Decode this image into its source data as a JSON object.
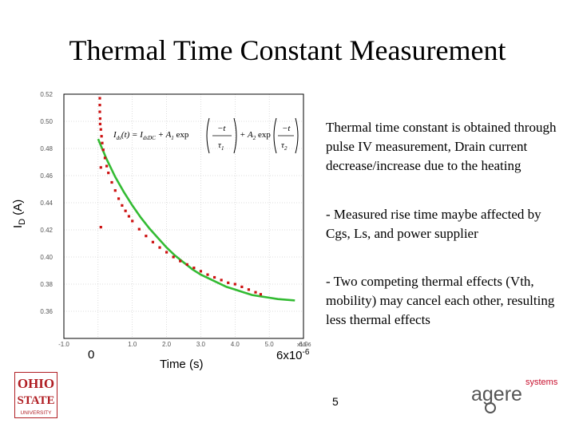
{
  "slide": {
    "title": "Thermal Time Constant Measurement",
    "page_number": "5",
    "notes": [
      "Thermal time constant is obtained through pulse IV measurement, Drain current decrease/increase due to the heating",
      " - Measured rise time maybe affected by Cgs, Ls, and power supplier",
      " - Two competing thermal effects (Vth, mobility) may cancel each other, resulting less thermal effects"
    ],
    "axis_overlay": {
      "ylabel_main": "I",
      "ylabel_sub": "D",
      "ylabel_unit": " (A)",
      "x_zero": "0",
      "x_mid": "Time (s)",
      "x_end_base": "6x10",
      "x_end_exp": "-6"
    },
    "equation": {
      "lhs": "I",
      "lhs_sub": "ds",
      "lhs_args": "(t) = ",
      "dc": "I",
      "dc_sub": "dsDC",
      "term1_prefix": " + A",
      "term1_sub": "1",
      "term1_exp": " exp",
      "term2_prefix": " + A",
      "term2_sub": "2",
      "term2_exp": " exp",
      "num": "−t",
      "tau": "τ",
      "tau1_sub": "1",
      "tau2_sub": "2"
    },
    "logos": {
      "osu_lines": [
        "OHIO",
        "STATE",
        "UNIVERSITY"
      ],
      "agere_word": "agere",
      "agere_sub": "systems"
    },
    "colors": {
      "measured": "#cc1111",
      "fit": "#33bb33",
      "frame": "#000000",
      "ticks": "#555555",
      "osu_red": "#b01e23",
      "agere_red": "#c8102e"
    }
  },
  "chart_data": {
    "type": "scatter",
    "xlabel": "Time (s)",
    "ylabel": "ID (A)",
    "xlim": [
      -1.0,
      6.0
    ],
    "ylim": [
      0.34,
      0.52
    ],
    "x_tick_labels": [
      "-1.0",
      "0",
      "1.0",
      "2.0",
      "3.0",
      "4.0",
      "5.0",
      "6.0"
    ],
    "x_tick_values": [
      -1.0,
      0.0,
      1.0,
      2.0,
      3.0,
      4.0,
      5.0,
      6.0
    ],
    "x_multiplier": "x10-6",
    "y_tick_labels": [
      "0.52",
      "0.50",
      "0.48",
      "0.46",
      "0.44",
      "0.42",
      "0.40",
      "0.38",
      "0.36"
    ],
    "y_tick_values": [
      0.52,
      0.5,
      0.48,
      0.46,
      0.44,
      0.42,
      0.4,
      0.38,
      0.36
    ],
    "grid": true,
    "series": [
      {
        "kind": "markers",
        "points": [
          [
            0.05,
            0.517
          ],
          [
            0.05,
            0.512
          ],
          [
            0.05,
            0.507
          ],
          [
            0.06,
            0.502
          ],
          [
            0.06,
            0.498
          ],
          [
            0.08,
            0.494
          ],
          [
            0.1,
            0.489
          ],
          [
            0.12,
            0.484
          ],
          [
            0.15,
            0.479
          ],
          [
            0.2,
            0.473
          ],
          [
            0.25,
            0.467
          ],
          [
            0.3,
            0.462
          ],
          [
            0.4,
            0.455
          ],
          [
            0.5,
            0.449
          ],
          [
            0.6,
            0.443
          ],
          [
            0.7,
            0.438
          ],
          [
            0.8,
            0.434
          ],
          [
            0.9,
            0.43
          ],
          [
            1.0,
            0.4265
          ],
          [
            1.2,
            0.4205
          ],
          [
            1.4,
            0.4155
          ],
          [
            1.6,
            0.411
          ],
          [
            1.8,
            0.407
          ],
          [
            2.0,
            0.4035
          ],
          [
            2.2,
            0.4
          ],
          [
            2.4,
            0.397
          ],
          [
            2.6,
            0.3945
          ],
          [
            2.8,
            0.392
          ],
          [
            3.0,
            0.3895
          ],
          [
            3.2,
            0.387
          ],
          [
            3.4,
            0.385
          ],
          [
            3.6,
            0.383
          ],
          [
            3.8,
            0.381
          ],
          [
            4.0,
            0.38
          ],
          [
            4.2,
            0.378
          ],
          [
            4.4,
            0.376
          ],
          [
            4.6,
            0.374
          ],
          [
            4.75,
            0.3725
          ],
          [
            0.08,
            0.466
          ],
          [
            0.08,
            0.422
          ]
        ]
      },
      {
        "kind": "fit",
        "x": [
          0.0,
          0.25,
          0.5,
          0.75,
          1.0,
          1.25,
          1.5,
          1.75,
          2.0,
          2.25,
          2.5,
          2.75,
          3.0,
          3.25,
          3.5,
          3.75,
          4.0,
          4.25,
          4.5,
          4.75,
          5.0,
          5.25,
          5.5,
          5.75
        ],
        "y": [
          0.487,
          0.472,
          0.459,
          0.448,
          0.438,
          0.429,
          0.421,
          0.414,
          0.407,
          0.401,
          0.396,
          0.391,
          0.387,
          0.384,
          0.381,
          0.378,
          0.376,
          0.374,
          0.372,
          0.371,
          0.37,
          0.369,
          0.3685,
          0.368
        ]
      }
    ]
  }
}
